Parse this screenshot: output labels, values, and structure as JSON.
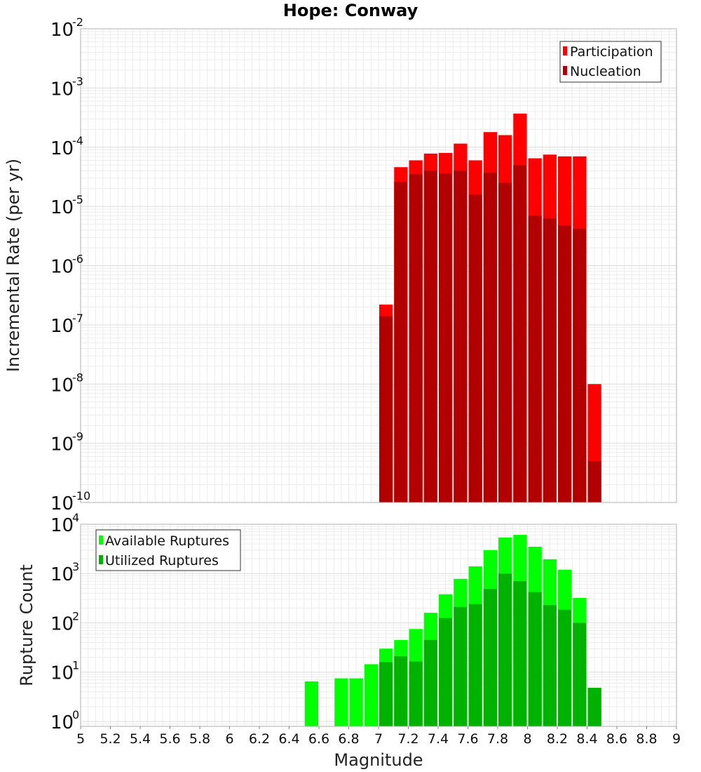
{
  "chart_data": [
    {
      "type": "bar",
      "title": "Hope: Conway",
      "xlabel": "",
      "ylabel": "Incremental Rate (per yr)",
      "yscale": "log",
      "ylim_exponents": [
        -10,
        -2
      ],
      "xlim": [
        5,
        9
      ],
      "bin_width": 0.1,
      "grid": true,
      "legend_position": "top-right",
      "overlay": true,
      "x": [
        7.05,
        7.15,
        7.25,
        7.35,
        7.45,
        7.55,
        7.65,
        7.75,
        7.85,
        7.95,
        8.05,
        8.15,
        8.25,
        8.35,
        8.45
      ],
      "series": [
        {
          "name": "Participation",
          "color": "#ff0000",
          "values": [
            2.2e-07,
            4.6e-05,
            6e-05,
            7.8e-05,
            8e-05,
            0.000115,
            6e-05,
            0.00018,
            0.00016,
            0.00037,
            6.5e-05,
            7.5e-05,
            7e-05,
            7e-05,
            1e-08
          ]
        },
        {
          "name": "Nucleation",
          "color": "#b20000",
          "values": [
            1.4e-07,
            2.6e-05,
            3.5e-05,
            4e-05,
            3.6e-05,
            4e-05,
            1.6e-05,
            3.7e-05,
            2.5e-05,
            5e-05,
            7e-06,
            6.3e-06,
            4.8e-06,
            4.2e-06,
            5e-10
          ]
        }
      ]
    },
    {
      "type": "bar",
      "title": "",
      "xlabel": "Magnitude",
      "ylabel": "Rupture Count",
      "yscale": "log",
      "ylim_exponents": [
        -0.1,
        4
      ],
      "xlim": [
        5,
        9
      ],
      "bin_width": 0.1,
      "grid": true,
      "legend_position": "top-left",
      "overlay": true,
      "x": [
        6.55,
        6.75,
        6.85,
        6.95,
        7.05,
        7.15,
        7.25,
        7.35,
        7.45,
        7.55,
        7.65,
        7.75,
        7.85,
        7.95,
        8.05,
        8.15,
        8.25,
        8.35,
        8.45
      ],
      "series": [
        {
          "name": "Available Ruptures",
          "color": "#00ff00",
          "values": [
            6.5,
            7.5,
            7.5,
            14.5,
            30,
            45,
            75,
            160,
            380,
            780,
            1400,
            3000,
            5400,
            6100,
            3500,
            1950,
            1200,
            320,
            4.8
          ]
        },
        {
          "name": "Utilized Ruptures",
          "color": "#00b200",
          "values": [
            0,
            0,
            0,
            0,
            16,
            21,
            16.5,
            45,
            125,
            210,
            240,
            490,
            1000,
            700,
            420,
            230,
            185,
            100,
            4.8
          ]
        }
      ]
    }
  ],
  "x_tick_labels": [
    "5",
    "5.2",
    "5.4",
    "5.6",
    "5.8",
    "6",
    "6.2",
    "6.4",
    "6.6",
    "6.8",
    "7",
    "7.2",
    "7.4",
    "7.6",
    "7.8",
    "8",
    "8.2",
    "8.4",
    "8.6",
    "8.8",
    "9"
  ],
  "top_y_tick_exponents": [
    "-2",
    "-3",
    "-4",
    "-5",
    "-6",
    "-7",
    "-8",
    "-9",
    "-10"
  ],
  "bottom_y_tick_exponents": [
    "4",
    "3",
    "2",
    "1",
    "0"
  ],
  "y_tick_base": "10"
}
